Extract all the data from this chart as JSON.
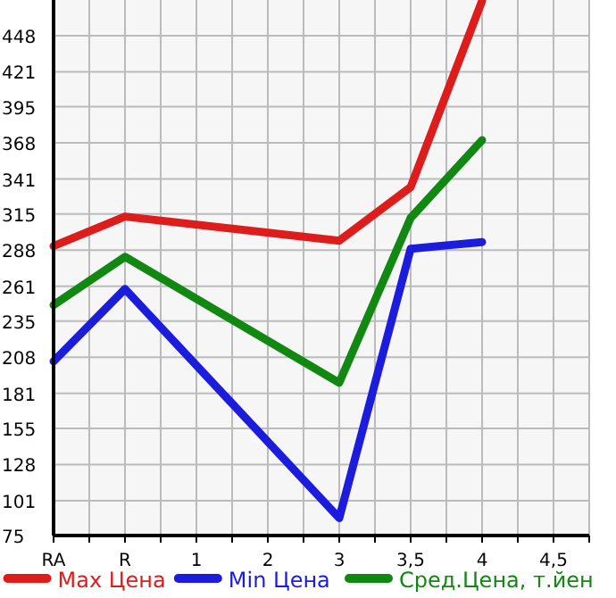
{
  "chart_data": {
    "type": "line",
    "categories": [
      "RA",
      "R",
      "1",
      "2",
      "3",
      "3,5",
      "4",
      "4,5"
    ],
    "ylim": [
      75,
      474.6
    ],
    "yticks": [
      75,
      101,
      128,
      155,
      181,
      208,
      235,
      261,
      288,
      315,
      341,
      368,
      395,
      421,
      448
    ],
    "grid": true,
    "legend": "bottom",
    "marker": "none",
    "line_style": "solid",
    "series": [
      {
        "name": "Max Цена",
        "color": "#dd1c1c",
        "values": [
          291,
          313,
          null,
          null,
          295,
          335,
          474,
          null
        ]
      },
      {
        "name": "Min Цена",
        "color": "#1c1cdd",
        "values": [
          205,
          259,
          null,
          null,
          88,
          289,
          294,
          null
        ]
      },
      {
        "name": "Сред.Цена, т.йен",
        "color": "#118811",
        "values": [
          247,
          283,
          null,
          null,
          189,
          312,
          370,
          null
        ]
      }
    ]
  }
}
